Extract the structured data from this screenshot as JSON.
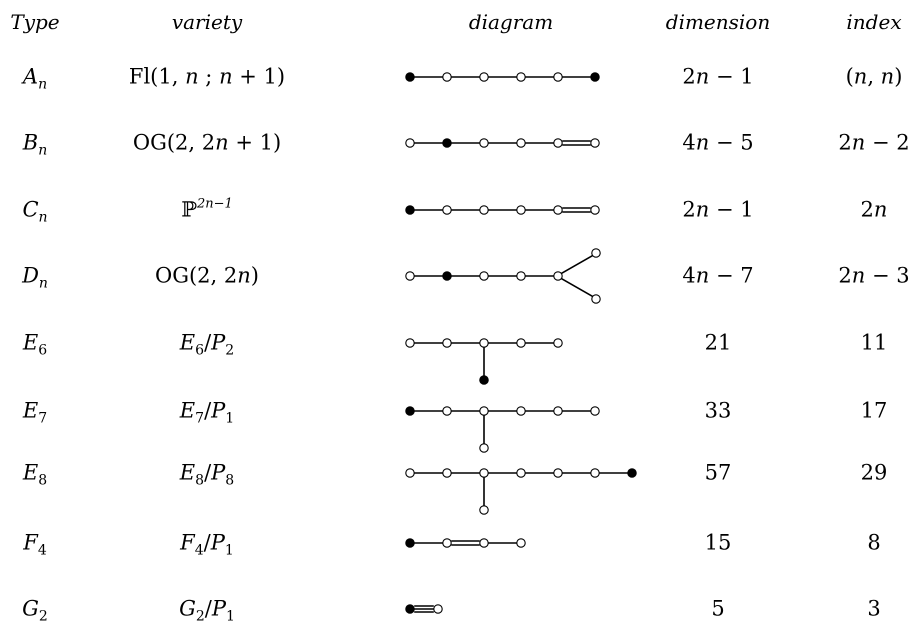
{
  "headers": {
    "type": "Type",
    "variety": "variety",
    "diagram": "diagram",
    "dimension": "dimension",
    "index": "index"
  },
  "rows": [
    {
      "type": {
        "base": "A",
        "sub": "n"
      },
      "variety": "Fl(1, n ; n + 1)",
      "dimension": "2n − 1",
      "index": "(n, n)",
      "diagram": {
        "nodes": [
          1,
          0,
          0,
          0,
          0,
          1
        ],
        "bonds": [
          "s",
          "s",
          "s",
          "s",
          "s"
        ]
      }
    },
    {
      "type": {
        "base": "B",
        "sub": "n"
      },
      "variety": "OG(2, 2n + 1)",
      "dimension": "4n − 5",
      "index": "2n − 2",
      "diagram": {
        "nodes": [
          0,
          1,
          0,
          0,
          0,
          0
        ],
        "bonds": [
          "s",
          "s",
          "s",
          "s",
          "d"
        ]
      }
    },
    {
      "type": {
        "base": "C",
        "sub": "n"
      },
      "variety": "ℙ2n−1",
      "dimension": "2n − 1",
      "index": "2n",
      "diagram": {
        "nodes": [
          1,
          0,
          0,
          0,
          0,
          0
        ],
        "bonds": [
          "s",
          "s",
          "s",
          "s",
          "d"
        ]
      }
    },
    {
      "type": {
        "base": "D",
        "sub": "n"
      },
      "variety": "OG(2, 2n)",
      "dimension": "4n − 7",
      "index": "2n − 3",
      "diagram": {
        "nodes": [
          0,
          1,
          0,
          0,
          0
        ],
        "bonds": [
          "s",
          "s",
          "s",
          "s"
        ],
        "fork": [
          0,
          0
        ]
      }
    },
    {
      "type": {
        "base": "E",
        "sub": "6"
      },
      "variety": "E6/P2",
      "dimension": "21",
      "index": "11",
      "diagram": {
        "nodes": [
          0,
          0,
          0,
          0,
          0
        ],
        "bonds": [
          "s",
          "s",
          "s",
          "s"
        ],
        "branch_at": 2,
        "branch_node": 1
      }
    },
    {
      "type": {
        "base": "E",
        "sub": "7"
      },
      "variety": "E7/P1",
      "dimension": "33",
      "index": "17",
      "diagram": {
        "nodes": [
          1,
          0,
          0,
          0,
          0,
          0
        ],
        "bonds": [
          "s",
          "s",
          "s",
          "s",
          "s"
        ],
        "branch_at": 2,
        "branch_node": 0
      }
    },
    {
      "type": {
        "base": "E",
        "sub": "8"
      },
      "variety": "E8/P8",
      "dimension": "57",
      "index": "29",
      "diagram": {
        "nodes": [
          0,
          0,
          0,
          0,
          0,
          0,
          1
        ],
        "bonds": [
          "s",
          "s",
          "s",
          "s",
          "s",
          "s"
        ],
        "branch_at": 2,
        "branch_node": 0
      }
    },
    {
      "type": {
        "base": "F",
        "sub": "4"
      },
      "variety": "F4/P1",
      "dimension": "15",
      "index": "8",
      "diagram": {
        "nodes": [
          1,
          0,
          0,
          0
        ],
        "bonds": [
          "s",
          "d",
          "s"
        ]
      }
    },
    {
      "type": {
        "base": "G",
        "sub": "2"
      },
      "variety": "G2/P1",
      "dimension": "5",
      "index": "3",
      "diagram": {
        "nodes": [
          1,
          0
        ],
        "bonds": [
          "t"
        ]
      }
    }
  ]
}
